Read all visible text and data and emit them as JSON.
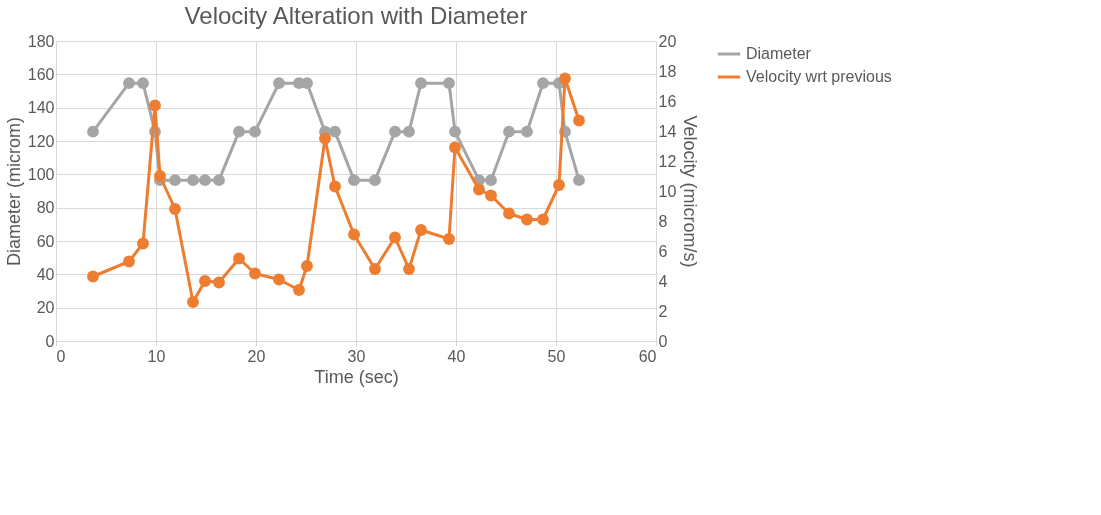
{
  "chart_data": {
    "type": "line",
    "title": "Velocity Alteration with Diameter",
    "xlabel": "Time (sec)",
    "ylabel": "Diameter (microm)",
    "y2label": "Velocity (microm/s)",
    "x": [
      3.7,
      7.3,
      8.7,
      9.9,
      10.4,
      11.9,
      13.7,
      14.9,
      16.3,
      18.3,
      19.9,
      22.3,
      24.3,
      25.1,
      26.9,
      27.9,
      29.8,
      31.9,
      33.9,
      35.3,
      36.5,
      39.3,
      39.9,
      42.3,
      43.5,
      45.3,
      47.1,
      48.7,
      50.3,
      50.9,
      52.3
    ],
    "series": [
      {
        "name": "Diameter",
        "color": "#a5a5a5",
        "values": [
          125.6,
          154.7,
          154.7,
          125.6,
          96.5,
          96.5,
          96.5,
          96.5,
          96.5,
          125.6,
          125.6,
          154.7,
          154.7,
          154.7,
          125.6,
          125.6,
          96.5,
          96.5,
          125.6,
          125.6,
          154.7,
          154.7,
          125.6,
          96.5,
          96.5,
          125.6,
          125.6,
          154.7,
          154.7,
          125.6,
          96.5
        ]
      },
      {
        "name": "Velocity wrt previous",
        "color": "#ed7d31",
        "axis": "y2",
        "values": [
          4.3,
          5.3,
          6.5,
          15.7,
          11.0,
          8.8,
          2.6,
          4.0,
          3.9,
          5.5,
          4.5,
          4.1,
          3.4,
          5.0,
          13.5,
          10.3,
          7.1,
          4.8,
          6.9,
          4.8,
          7.4,
          6.8,
          12.9,
          10.1,
          9.7,
          8.5,
          8.1,
          8.1,
          10.4,
          17.5,
          14.7
        ]
      }
    ],
    "xlim": [
      0,
      60
    ],
    "xticks": [
      0,
      10,
      20,
      30,
      40,
      50,
      60
    ],
    "ylim": [
      0,
      180
    ],
    "yticks": [
      0,
      20,
      40,
      60,
      80,
      100,
      120,
      140,
      160,
      180
    ],
    "y2lim": [
      0,
      20
    ],
    "y2ticks": [
      0,
      2,
      4,
      6,
      8,
      10,
      12,
      14,
      16,
      18,
      20
    ],
    "grid": true,
    "legend": "right",
    "marker": "circle",
    "line_style": "solid"
  }
}
